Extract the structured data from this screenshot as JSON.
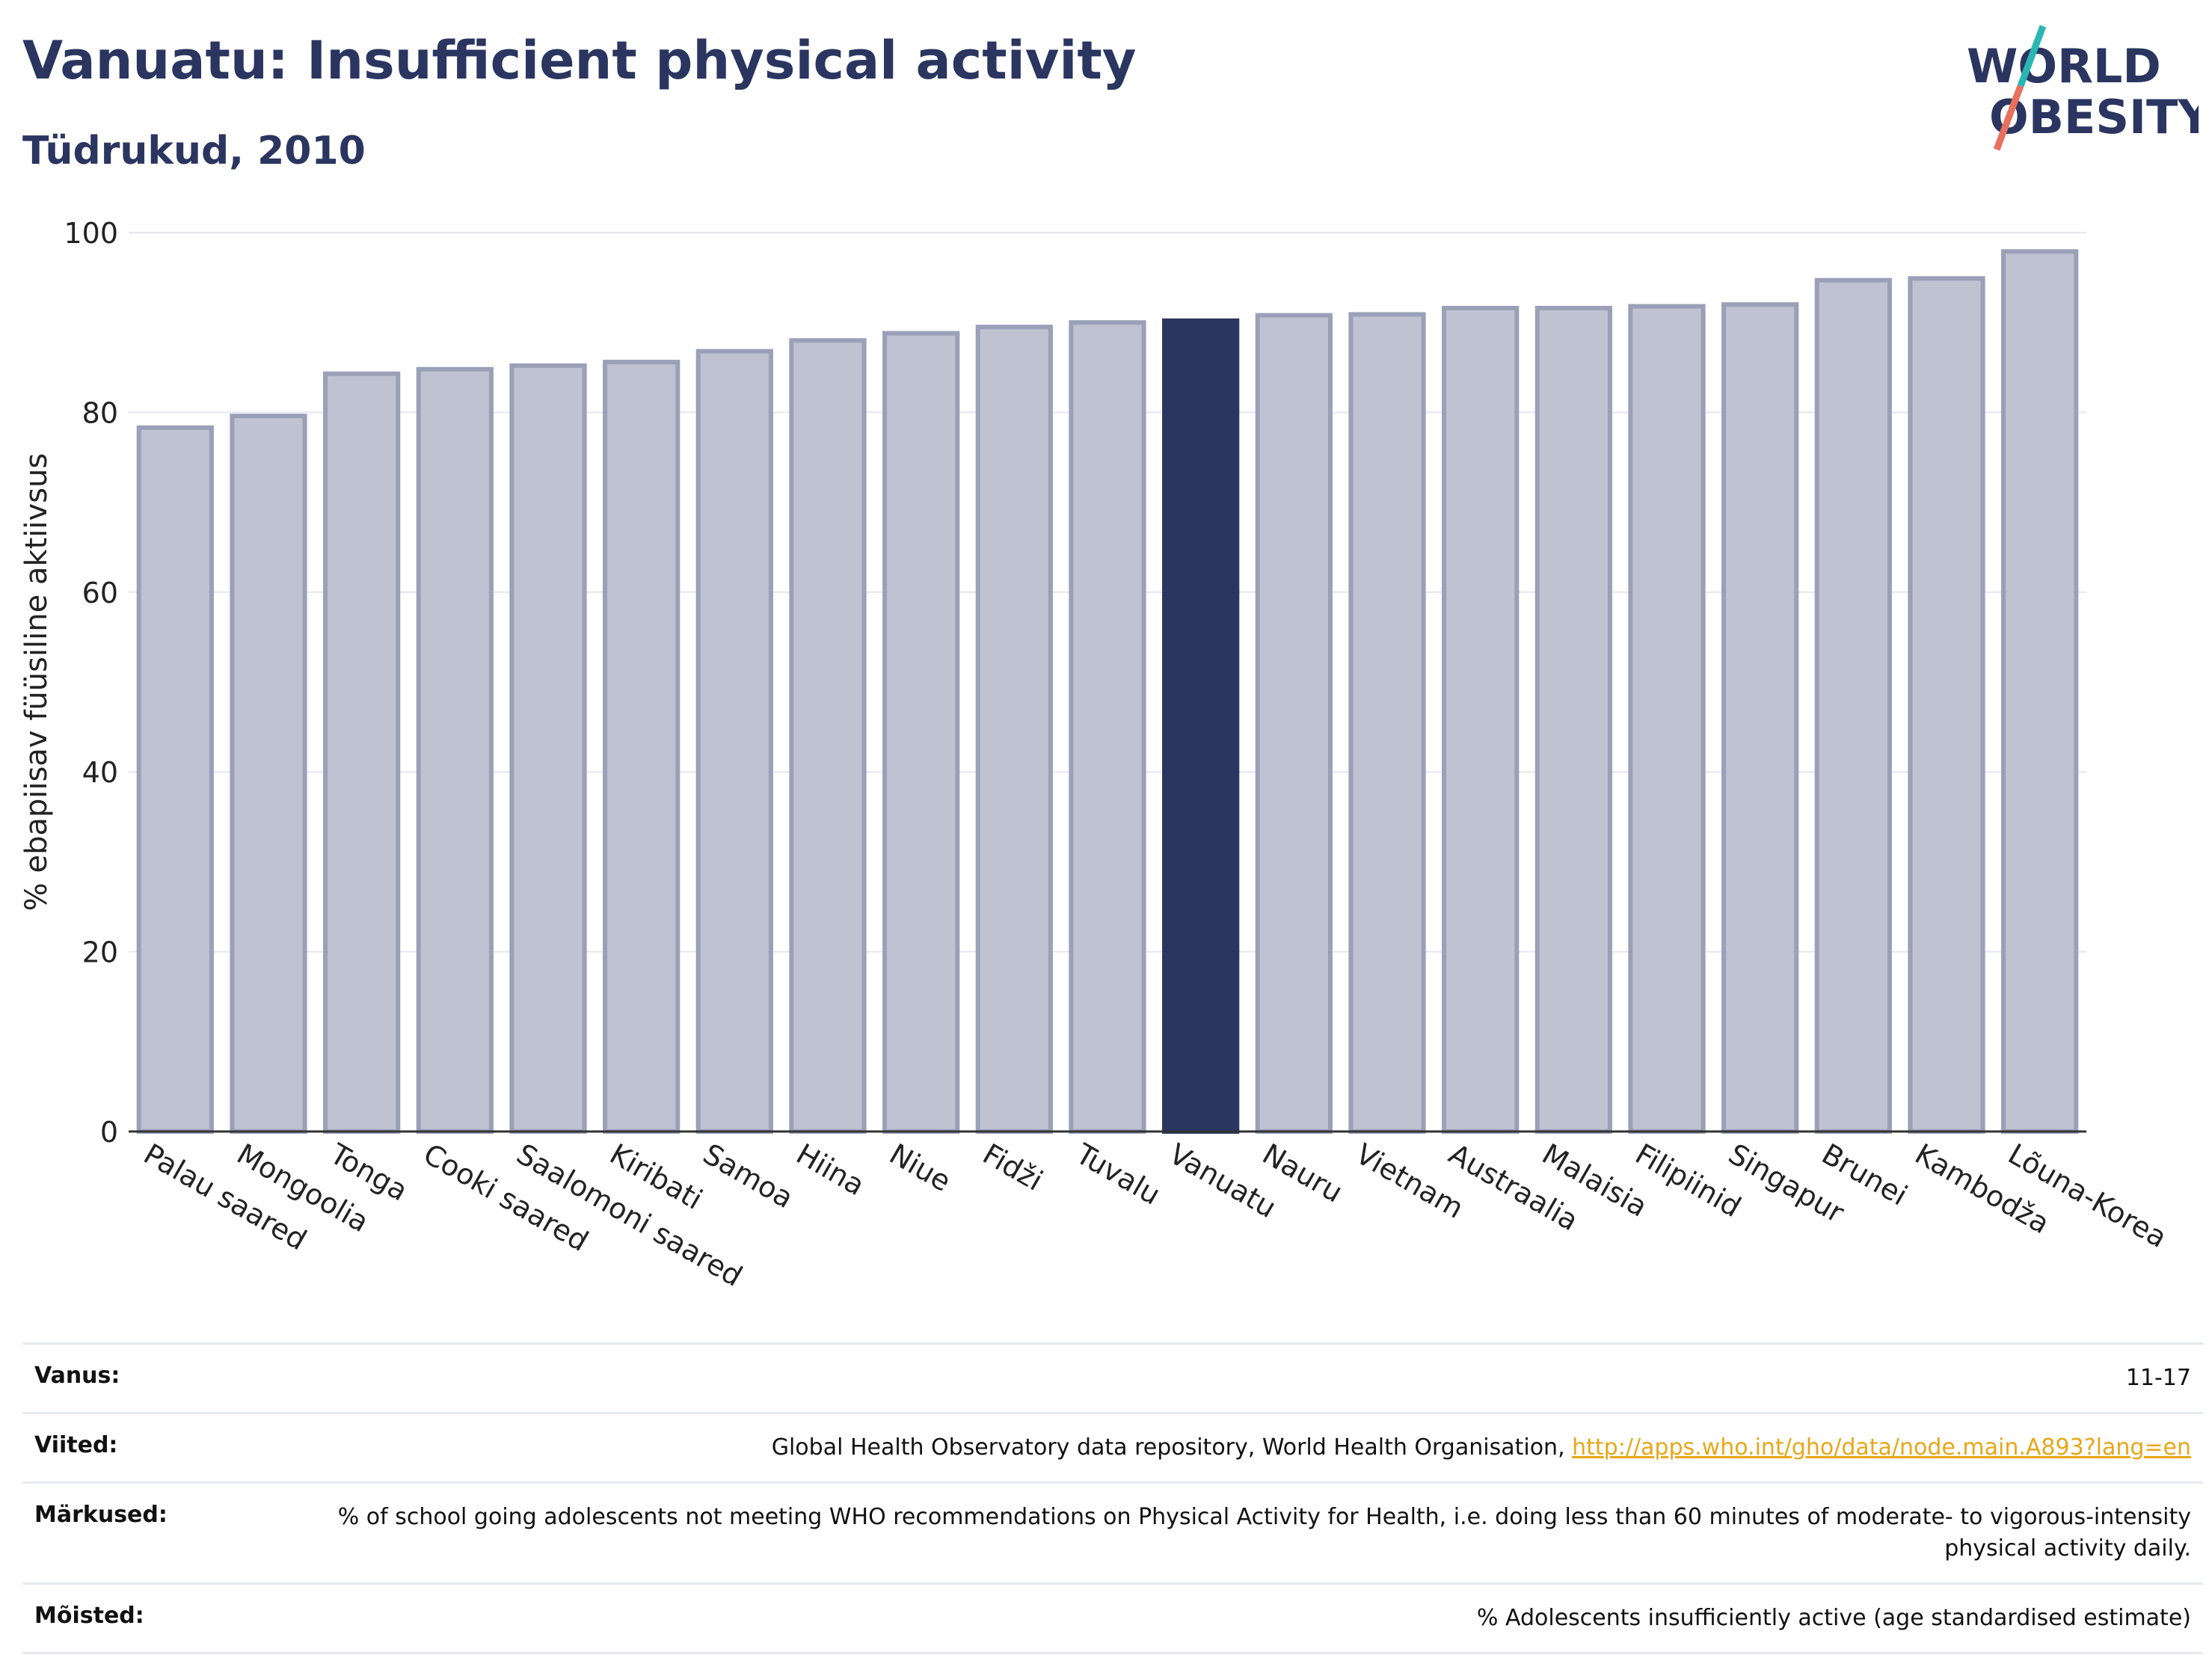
{
  "header": {
    "title": "Vanuatu: Insufficient physical activity",
    "subtitle": "Tüdrukud, 2010"
  },
  "logo": {
    "line1": "WORLD",
    "line2": "OBESITY",
    "slash_colors": [
      "#2ab7b4",
      "#e8705f"
    ]
  },
  "colors": {
    "bar": "#bfc2d0",
    "bar_edge": "#9aa0b8",
    "highlight": "#2a3560",
    "grid": "#e6e6ee",
    "axis": "#333333"
  },
  "chart_data": {
    "type": "bar",
    "ylabel": "% ebapiisav füüsiline aktiivsus",
    "ylim": [
      0,
      100
    ],
    "yticks": [
      0,
      20,
      40,
      60,
      80,
      100
    ],
    "grid": true,
    "highlight": "Vanuatu",
    "categories": [
      "Palau saared",
      "Mongoolia",
      "Tonga",
      "Cooki saared",
      "Saalomoni saared",
      "Kiribati",
      "Samoa",
      "Hiina",
      "Niue",
      "Fidži",
      "Tuvalu",
      "Vanuatu",
      "Nauru",
      "Vietnam",
      "Austraalia",
      "Malaisia",
      "Filipiinid",
      "Singapur",
      "Brunei",
      "Kambodža",
      "Lõuna-Korea"
    ],
    "values": [
      78.3,
      79.6,
      84.3,
      84.8,
      85.2,
      85.6,
      86.8,
      88.0,
      88.8,
      89.5,
      90.0,
      90.2,
      90.8,
      90.9,
      91.6,
      91.6,
      91.8,
      92.0,
      94.7,
      94.9,
      97.9
    ]
  },
  "footer": {
    "rows": [
      {
        "label": "Vanus:",
        "value": "11-17"
      },
      {
        "label": "Viited:",
        "value": "Global Health Observatory data repository, World Health Organisation, ",
        "link": "http://apps.who.int/gho/data/node.main.A893?lang=en"
      },
      {
        "label": "Märkused:",
        "value": "% of school going adolescents not meeting WHO recommendations on Physical Activity for Health, i.e. doing less than 60 minutes of moderate- to vigorous-intensity physical activity daily."
      },
      {
        "label": "Mõisted:",
        "value": "% Adolescents insufficiently active (age standardised estimate)"
      }
    ]
  }
}
